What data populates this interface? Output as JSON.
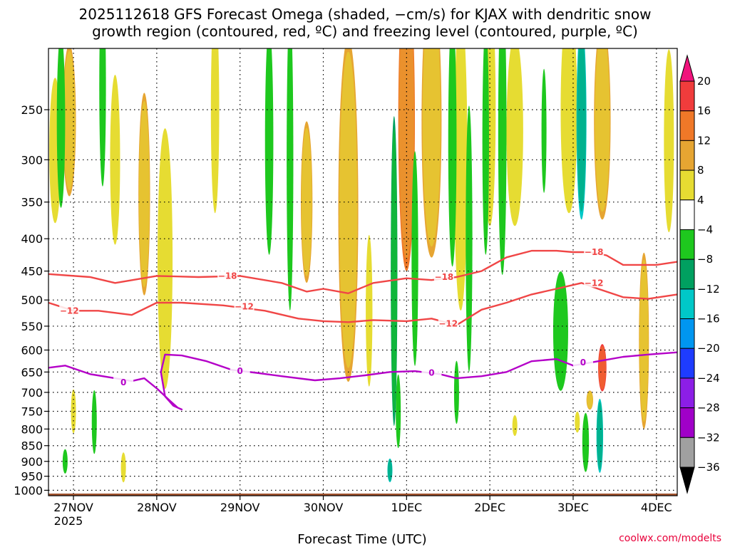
{
  "chart_data": {
    "type": "contour",
    "title_line1": "2025112618 GFS Forecast Omega (shaded, −cm/s) for KJAX with dendritic snow",
    "title_line2": "growth region (contoured, red, ºC) and freezing level (contoured, purple, ºC)",
    "xlabel": "Forecast Time (UTC)",
    "ylabel": "",
    "watermark": "coolwx.com/modelts",
    "x_ticks": [
      {
        "label": "27NOV",
        "day": 0
      },
      {
        "label": "28NOV",
        "day": 1
      },
      {
        "label": "29NOV",
        "day": 2
      },
      {
        "label": "30NOV",
        "day": 3
      },
      {
        "label": "1DEC",
        "day": 4
      },
      {
        "label": "2DEC",
        "day": 5
      },
      {
        "label": "3DEC",
        "day": 6
      },
      {
        "label": "4DEC",
        "day": 7
      }
    ],
    "x_year_label": "2025",
    "x_range_days": [
      -0.3,
      7.25
    ],
    "y_ticks": [
      250,
      300,
      350,
      400,
      450,
      500,
      550,
      600,
      650,
      700,
      750,
      800,
      850,
      900,
      950,
      1000
    ],
    "y_range_hpa": [
      200,
      1020
    ],
    "colorbar": {
      "labels": [
        "20",
        "16",
        "12",
        "8",
        "4",
        "−4",
        "−8",
        "−12",
        "−16",
        "−20",
        "−24",
        "−28",
        "−32",
        "−36"
      ],
      "colors": [
        "#f0137c",
        "#f03c3c",
        "#f07828",
        "#e6a532",
        "#e6dc32",
        "#ffffff",
        "#1ec81e",
        "#00a060",
        "#00c8c8",
        "#0096f0",
        "#1e3cff",
        "#8c1ee6",
        "#a000c8",
        "#a0a0a0",
        "#000000"
      ]
    },
    "omega_blobs": [
      {
        "day": -0.22,
        "hpa": 290,
        "half_days": 0.07,
        "half_hpa": 75,
        "value": 5
      },
      {
        "day": -0.05,
        "hpa": 260,
        "half_days": 0.08,
        "half_hpa": 70,
        "value": 8
      },
      {
        "day": 0.5,
        "hpa": 300,
        "half_days": 0.06,
        "half_hpa": 90,
        "value": 5
      },
      {
        "day": 0.85,
        "hpa": 340,
        "half_days": 0.07,
        "half_hpa": 120,
        "value": 10
      },
      {
        "day": 1.1,
        "hpa": 430,
        "half_days": 0.09,
        "half_hpa": 190,
        "value": 5
      },
      {
        "day": 1.7,
        "hpa": 250,
        "half_days": 0.05,
        "half_hpa": 90,
        "value": 5
      },
      {
        "day": 2.8,
        "hpa": 350,
        "half_days": 0.07,
        "half_hpa": 100,
        "value": 10
      },
      {
        "day": 3.3,
        "hpa": 360,
        "half_days": 0.12,
        "half_hpa": 200,
        "value": 10
      },
      {
        "day": 3.55,
        "hpa": 520,
        "half_days": 0.04,
        "half_hpa": 140,
        "value": 6
      },
      {
        "day": 4.0,
        "hpa": 260,
        "half_days": 0.1,
        "half_hpa": 130,
        "value": 14
      },
      {
        "day": 4.3,
        "hpa": 260,
        "half_days": 0.12,
        "half_hpa": 120,
        "value": 10
      },
      {
        "day": 4.65,
        "hpa": 300,
        "half_days": 0.08,
        "half_hpa": 150,
        "value": 6
      },
      {
        "day": 5.0,
        "hpa": 250,
        "half_days": 0.07,
        "half_hpa": 100,
        "value": 5
      },
      {
        "day": 5.3,
        "hpa": 270,
        "half_days": 0.1,
        "half_hpa": 90,
        "value": 6
      },
      {
        "day": 5.95,
        "hpa": 250,
        "half_days": 0.1,
        "half_hpa": 90,
        "value": 5
      },
      {
        "day": 6.35,
        "hpa": 260,
        "half_days": 0.1,
        "half_hpa": 90,
        "value": 10
      },
      {
        "day": 6.35,
        "hpa": 640,
        "half_days": 0.05,
        "half_hpa": 55,
        "value": 18
      },
      {
        "day": 6.2,
        "hpa": 720,
        "half_days": 0.04,
        "half_hpa": 25,
        "value": 10
      },
      {
        "day": 6.85,
        "hpa": 580,
        "half_days": 0.06,
        "half_hpa": 180,
        "value": 10
      },
      {
        "day": 7.15,
        "hpa": 280,
        "half_days": 0.06,
        "half_hpa": 90,
        "value": 5
      },
      {
        "day": 0.0,
        "hpa": 750,
        "half_days": 0.03,
        "half_hpa": 60,
        "value": 5
      },
      {
        "day": 0.6,
        "hpa": 920,
        "half_days": 0.03,
        "half_hpa": 50,
        "value": 5
      },
      {
        "day": 6.05,
        "hpa": 780,
        "half_days": 0.03,
        "half_hpa": 30,
        "value": 5
      },
      {
        "day": 5.3,
        "hpa": 790,
        "half_days": 0.03,
        "half_hpa": 30,
        "value": 5
      },
      {
        "day": -0.15,
        "hpa": 260,
        "half_days": 0.05,
        "half_hpa": 80,
        "value": -6
      },
      {
        "day": 0.35,
        "hpa": 230,
        "half_days": 0.04,
        "half_hpa": 80,
        "value": -6
      },
      {
        "day": 2.35,
        "hpa": 280,
        "half_days": 0.05,
        "half_hpa": 110,
        "value": -6
      },
      {
        "day": 2.6,
        "hpa": 300,
        "half_days": 0.04,
        "half_hpa": 150,
        "value": -6
      },
      {
        "day": 3.85,
        "hpa": 450,
        "half_days": 0.04,
        "half_hpa": 230,
        "value": -8
      },
      {
        "day": 4.1,
        "hpa": 430,
        "half_days": 0.04,
        "half_hpa": 160,
        "value": -6
      },
      {
        "day": 4.55,
        "hpa": 280,
        "half_days": 0.05,
        "half_hpa": 120,
        "value": -6
      },
      {
        "day": 4.75,
        "hpa": 400,
        "half_days": 0.04,
        "half_hpa": 180,
        "value": -6
      },
      {
        "day": 4.95,
        "hpa": 280,
        "half_days": 0.04,
        "half_hpa": 110,
        "value": -6
      },
      {
        "day": 5.15,
        "hpa": 270,
        "half_days": 0.05,
        "half_hpa": 130,
        "value": -6
      },
      {
        "day": 5.65,
        "hpa": 270,
        "half_days": 0.03,
        "half_hpa": 60,
        "value": -6
      },
      {
        "day": 5.85,
        "hpa": 560,
        "half_days": 0.09,
        "half_hpa": 120,
        "value": -6
      },
      {
        "day": 6.1,
        "hpa": 260,
        "half_days": 0.06,
        "half_hpa": 90,
        "value": -12
      },
      {
        "day": 6.32,
        "hpa": 820,
        "half_days": 0.04,
        "half_hpa": 110,
        "value": -12
      },
      {
        "day": 6.15,
        "hpa": 840,
        "half_days": 0.04,
        "half_hpa": 90,
        "value": -6
      },
      {
        "day": -0.1,
        "hpa": 900,
        "half_days": 0.03,
        "half_hpa": 40,
        "value": -6
      },
      {
        "day": 0.25,
        "hpa": 780,
        "half_days": 0.03,
        "half_hpa": 90,
        "value": -6
      },
      {
        "day": 3.8,
        "hpa": 930,
        "half_days": 0.03,
        "half_hpa": 40,
        "value": -12
      },
      {
        "day": 3.9,
        "hpa": 750,
        "half_days": 0.03,
        "half_hpa": 100,
        "value": -6
      },
      {
        "day": 4.6,
        "hpa": 700,
        "half_days": 0.03,
        "half_hpa": 80,
        "value": -6
      }
    ],
    "contours": [
      {
        "name": "-18",
        "color": "#f04646",
        "label": "−18",
        "label_day": 1.85,
        "label_hpa": 458,
        "points": [
          [
            -0.3,
            455
          ],
          [
            0.2,
            460
          ],
          [
            0.5,
            470
          ],
          [
            1.0,
            458
          ],
          [
            1.5,
            460
          ],
          [
            2.0,
            458
          ],
          [
            2.5,
            470
          ],
          [
            2.8,
            485
          ],
          [
            3.0,
            480
          ],
          [
            3.3,
            488
          ],
          [
            3.6,
            470
          ],
          [
            4.0,
            462
          ],
          [
            4.3,
            465
          ],
          [
            4.6,
            460
          ],
          [
            4.9,
            450
          ],
          [
            5.2,
            428
          ],
          [
            5.5,
            418
          ],
          [
            5.8,
            418
          ],
          [
            6.0,
            420
          ],
          [
            6.2,
            420
          ],
          [
            6.4,
            425
          ],
          [
            6.6,
            440
          ],
          [
            7.0,
            440
          ],
          [
            7.25,
            435
          ]
        ],
        "extra_labels": [
          {
            "label": "−18",
            "day": 4.45,
            "hpa": 460
          },
          {
            "label": "−18",
            "day": 6.25,
            "hpa": 420
          }
        ]
      },
      {
        "name": "-12",
        "color": "#f04646",
        "label": "−12",
        "label_day": -0.05,
        "label_hpa": 520,
        "points": [
          [
            -0.3,
            505
          ],
          [
            0.0,
            520
          ],
          [
            0.3,
            520
          ],
          [
            0.7,
            528
          ],
          [
            1.0,
            505
          ],
          [
            1.3,
            505
          ],
          [
            1.8,
            510
          ],
          [
            2.3,
            520
          ],
          [
            2.7,
            535
          ],
          [
            3.0,
            540
          ],
          [
            3.3,
            542
          ],
          [
            3.6,
            538
          ],
          [
            4.0,
            540
          ],
          [
            4.3,
            535
          ],
          [
            4.6,
            548
          ],
          [
            4.9,
            518
          ],
          [
            5.2,
            505
          ],
          [
            5.5,
            490
          ],
          [
            5.8,
            480
          ],
          [
            6.1,
            470
          ],
          [
            6.3,
            480
          ],
          [
            6.6,
            495
          ],
          [
            6.9,
            498
          ],
          [
            7.25,
            490
          ]
        ],
        "extra_labels": [
          {
            "label": "−12",
            "day": 2.05,
            "hpa": 512
          },
          {
            "label": "−12",
            "day": 4.5,
            "hpa": 545
          },
          {
            "label": "−12",
            "day": 6.25,
            "hpa": 470
          }
        ]
      },
      {
        "name": "0",
        "color": "#b400c8",
        "label": "0",
        "label_day": 0.6,
        "label_hpa": 675,
        "points": [
          [
            -0.3,
            640
          ],
          [
            -0.1,
            635
          ],
          [
            0.2,
            655
          ],
          [
            0.5,
            665
          ],
          [
            0.7,
            672
          ],
          [
            0.85,
            665
          ],
          [
            1.0,
            690
          ],
          [
            1.15,
            720
          ],
          [
            1.25,
            740
          ],
          [
            1.3,
            745
          ],
          [
            1.2,
            735
          ],
          [
            1.1,
            710
          ],
          [
            1.05,
            650
          ],
          [
            1.1,
            610
          ],
          [
            1.3,
            612
          ],
          [
            1.6,
            625
          ],
          [
            1.9,
            645
          ],
          [
            2.2,
            652
          ],
          [
            2.5,
            660
          ],
          [
            2.9,
            670
          ],
          [
            3.2,
            665
          ],
          [
            3.5,
            658
          ],
          [
            3.8,
            650
          ],
          [
            4.1,
            648
          ],
          [
            4.4,
            655
          ],
          [
            4.6,
            665
          ],
          [
            4.9,
            660
          ],
          [
            5.2,
            650
          ],
          [
            5.5,
            625
          ],
          [
            5.8,
            620
          ],
          [
            6.0,
            635
          ],
          [
            6.3,
            625
          ],
          [
            6.6,
            615
          ],
          [
            6.9,
            610
          ],
          [
            7.25,
            605
          ]
        ],
        "extra_labels": [
          {
            "label": "0",
            "day": 2.0,
            "hpa": 648
          },
          {
            "label": "0",
            "day": 4.3,
            "hpa": 652
          },
          {
            "label": "0",
            "day": 6.12,
            "hpa": 628
          }
        ]
      }
    ],
    "terrain_hpa": 1012
  }
}
